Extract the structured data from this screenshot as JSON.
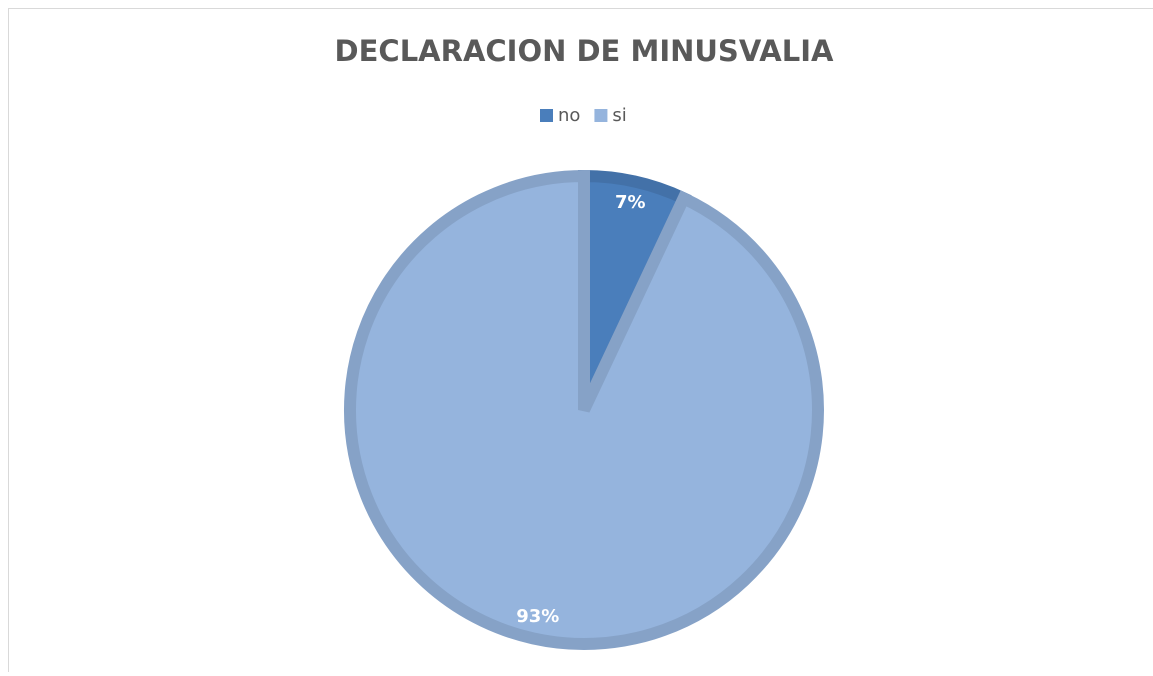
{
  "chart_data": {
    "type": "pie",
    "title": "DECLARACION DE MINUSVALIA",
    "categories": [
      "no",
      "si"
    ],
    "values": [
      7,
      93
    ],
    "value_labels": [
      "7%",
      "93%"
    ],
    "colors": [
      "#4a7ebb",
      "#95b4dd"
    ],
    "legend": "top"
  }
}
